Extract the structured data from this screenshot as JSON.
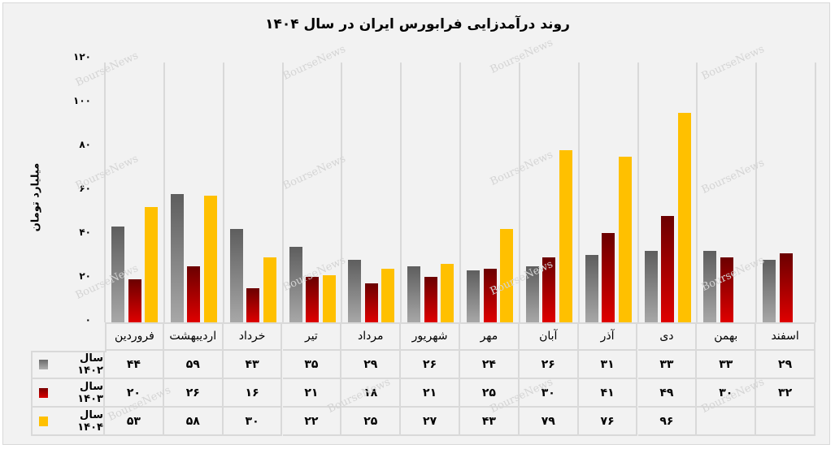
{
  "chart_data": {
    "type": "bar",
    "title": "روند درآمدزایی فرابورس ایران در سال ۱۴۰۴",
    "xlabel": "",
    "ylabel": "میلیارد تومان",
    "ylim": [
      0,
      120
    ],
    "yticks": [
      0,
      20,
      40,
      60,
      80,
      100,
      120
    ],
    "ytick_labels": [
      "۰",
      "۲۰",
      "۴۰",
      "۶۰",
      "۸۰",
      "۱۰۰",
      "۱۲۰"
    ],
    "grid": false,
    "legend_position": "data-table-left",
    "categories": [
      "فروردین",
      "اردیبهشت",
      "خرداد",
      "تیر",
      "مرداد",
      "شهریور",
      "مهر",
      "آبان",
      "آذر",
      "دی",
      "بهمن",
      "اسفند"
    ],
    "series": [
      {
        "name": "سال ۱۴۰۲",
        "color": "#8c8c8c",
        "values": [
          44,
          59,
          43,
          35,
          29,
          26,
          24,
          26,
          31,
          33,
          33,
          29
        ],
        "labels": [
          "۴۴",
          "۵۹",
          "۴۳",
          "۳۵",
          "۲۹",
          "۲۶",
          "۲۴",
          "۲۶",
          "۳۱",
          "۳۳",
          "۳۳",
          "۲۹"
        ]
      },
      {
        "name": "سال ۱۴۰۳",
        "color": "#c00000",
        "values": [
          20,
          26,
          16,
          21,
          18,
          21,
          25,
          30,
          41,
          49,
          30,
          32
        ],
        "labels": [
          "۲۰",
          "۲۶",
          "۱۶",
          "۲۱",
          "۱۸",
          "۲۱",
          "۲۵",
          "۳۰",
          "۴۱",
          "۴۹",
          "۳۰",
          "۳۲"
        ]
      },
      {
        "name": "سال ۱۴۰۴",
        "color": "#ffc000",
        "values": [
          53,
          58,
          30,
          22,
          25,
          27,
          43,
          79,
          76,
          96,
          null,
          null
        ],
        "labels": [
          "۵۳",
          "۵۸",
          "۳۰",
          "۲۲",
          "۲۵",
          "۲۷",
          "۴۳",
          "۷۹",
          "۷۶",
          "۹۶",
          "",
          ""
        ]
      }
    ]
  },
  "watermark": "BourseNews"
}
